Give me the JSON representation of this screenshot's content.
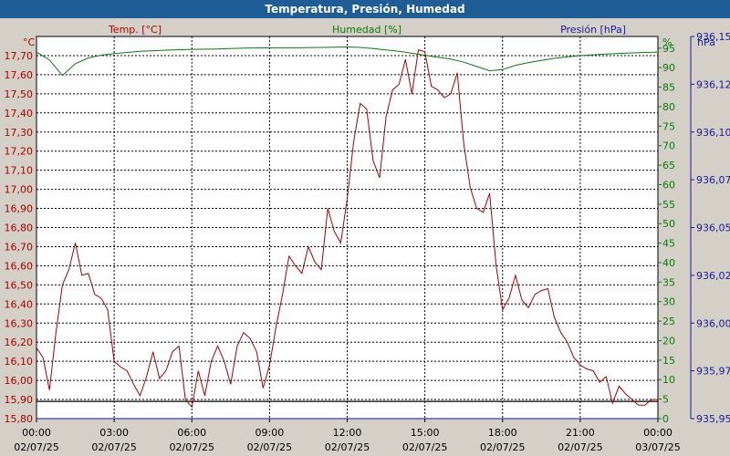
{
  "window": {
    "title": "Temperatura, Presión, Humedad"
  },
  "colors": {
    "temperature": "#a80000",
    "humidity": "#0a7a0a",
    "pressure": "#1a1a9a",
    "titlebar": "#1f5d96"
  },
  "chart_data": {
    "type": "line",
    "title": "Temperatura, Presión, Humedad",
    "grid": true,
    "x_ticks": [
      {
        "time": "00:00",
        "date": "02/07/25"
      },
      {
        "time": "03:00",
        "date": "02/07/25"
      },
      {
        "time": "06:00",
        "date": "02/07/25"
      },
      {
        "time": "09:00",
        "date": "02/07/25"
      },
      {
        "time": "12:00",
        "date": "02/07/25"
      },
      {
        "time": "15:00",
        "date": "02/07/25"
      },
      {
        "time": "18:00",
        "date": "02/07/25"
      },
      {
        "time": "21:00",
        "date": "02/07/25"
      },
      {
        "time": "00:00",
        "date": "03/07/25"
      }
    ],
    "axes": {
      "temperature": {
        "label": "Temp. [°C]",
        "unit": "°C",
        "ylim": [
          15.8,
          17.8
        ],
        "ticks": [
          "15,80",
          "15,90",
          "16,00",
          "16,10",
          "16,20",
          "16,30",
          "16,40",
          "16,50",
          "16,60",
          "16,70",
          "16,80",
          "16,90",
          "17,00",
          "17,10",
          "17,20",
          "17,30",
          "17,40",
          "17,50",
          "17,60",
          "17,70"
        ]
      },
      "humidity": {
        "label": "Humedad [%]",
        "unit": "%",
        "ylim": [
          0,
          98
        ],
        "ticks": [
          "0",
          "5",
          "10",
          "15",
          "20",
          "25",
          "30",
          "35",
          "40",
          "45",
          "50",
          "55",
          "60",
          "65",
          "70",
          "75",
          "80",
          "85",
          "90",
          "95"
        ]
      },
      "pressure": {
        "label": "Presión [hPa]",
        "unit": "hPa",
        "ylim": [
          935.95,
          936.15
        ],
        "ticks": [
          {
            "label": "935,95",
            "value": 935.95
          },
          {
            "label": "935,97",
            "value": 935.975
          },
          {
            "label": "936,00",
            "value": 936.0
          },
          {
            "label": "936,02",
            "value": 936.025
          },
          {
            "label": "936,05",
            "value": 936.05
          },
          {
            "label": "936,07",
            "value": 936.075
          },
          {
            "label": "936,10",
            "value": 936.1
          },
          {
            "label": "936,12",
            "value": 936.125
          },
          {
            "label": "936,15",
            "value": 936.15
          }
        ]
      }
    },
    "series": [
      {
        "name": "Temp. [°C]",
        "axis": "temperature",
        "x": [
          0,
          0.25,
          0.5,
          0.75,
          1,
          1.25,
          1.5,
          1.75,
          2,
          2.25,
          2.5,
          2.75,
          3,
          3.25,
          3.5,
          3.75,
          4,
          4.25,
          4.5,
          4.75,
          5,
          5.25,
          5.5,
          5.75,
          6,
          6.25,
          6.5,
          6.75,
          7,
          7.25,
          7.5,
          7.75,
          8,
          8.25,
          8.5,
          8.75,
          9,
          9.25,
          9.5,
          9.75,
          10,
          10.25,
          10.5,
          10.75,
          11,
          11.25,
          11.5,
          11.75,
          12,
          12.25,
          12.5,
          12.75,
          13,
          13.25,
          13.5,
          13.75,
          14,
          14.25,
          14.5,
          14.75,
          15,
          15.25,
          15.5,
          15.75,
          16,
          16.25,
          16.5,
          16.75,
          17,
          17.25,
          17.5,
          17.75,
          18,
          18.25,
          18.5,
          18.75,
          19,
          19.25,
          19.5,
          19.75,
          20,
          20.25,
          20.5,
          20.75,
          21,
          21.25,
          21.5,
          21.75,
          22,
          22.25,
          22.5,
          22.75,
          23,
          23.25,
          23.5,
          23.75,
          24
        ],
        "values": [
          16.17,
          16.12,
          15.95,
          16.25,
          16.5,
          16.58,
          16.72,
          16.55,
          16.56,
          16.45,
          16.43,
          16.37,
          16.1,
          16.07,
          16.05,
          15.98,
          15.92,
          16.02,
          16.15,
          16.01,
          16.05,
          16.15,
          16.18,
          15.9,
          15.86,
          16.05,
          15.92,
          16.1,
          16.18,
          16.1,
          15.98,
          16.18,
          16.25,
          16.22,
          16.15,
          15.96,
          16.08,
          16.28,
          16.45,
          16.65,
          16.6,
          16.56,
          16.7,
          16.62,
          16.58,
          16.9,
          16.78,
          16.72,
          16.95,
          17.25,
          17.45,
          17.42,
          17.15,
          17.06,
          17.38,
          17.52,
          17.55,
          17.68,
          17.5,
          17.73,
          17.72,
          17.54,
          17.52,
          17.48,
          17.5,
          17.61,
          17.24,
          17.01,
          16.9,
          16.88,
          16.98,
          16.6,
          16.37,
          16.43,
          16.55,
          16.42,
          16.38,
          16.45,
          16.47,
          16.48,
          16.33,
          16.25,
          16.2,
          16.12,
          16.08,
          16.06,
          16.05,
          15.99,
          16.02,
          15.88,
          15.97,
          15.93,
          15.9,
          15.87,
          15.87,
          15.9,
          15.9
        ]
      },
      {
        "name": "Humedad [%]",
        "axis": "humidity",
        "x": [
          0,
          0.5,
          1,
          1.5,
          2,
          2.5,
          3,
          4,
          5,
          6,
          7,
          8,
          9,
          10,
          11,
          12,
          12.5,
          13,
          14,
          15,
          15.5,
          16,
          16.5,
          17,
          17.5,
          18,
          18.5,
          19,
          20,
          21,
          22,
          23,
          24
        ],
        "values": [
          94,
          92,
          88,
          91,
          92.5,
          93.2,
          93.6,
          94.2,
          94.5,
          94.7,
          94.8,
          95,
          95.1,
          95.1,
          95.2,
          95.3,
          95.2,
          94.9,
          94.2,
          93.2,
          92.7,
          92.2,
          91.4,
          90.3,
          89.2,
          89.5,
          90.6,
          91.3,
          92.4,
          93.1,
          93.5,
          93.8,
          94
        ]
      },
      {
        "name": "Presión [hPa]",
        "axis": "pressure",
        "x": [
          0,
          24
        ],
        "values": [
          935.95,
          935.95
        ]
      }
    ],
    "markers": [
      {
        "axis": "temperature",
        "value": 15.89
      }
    ]
  }
}
